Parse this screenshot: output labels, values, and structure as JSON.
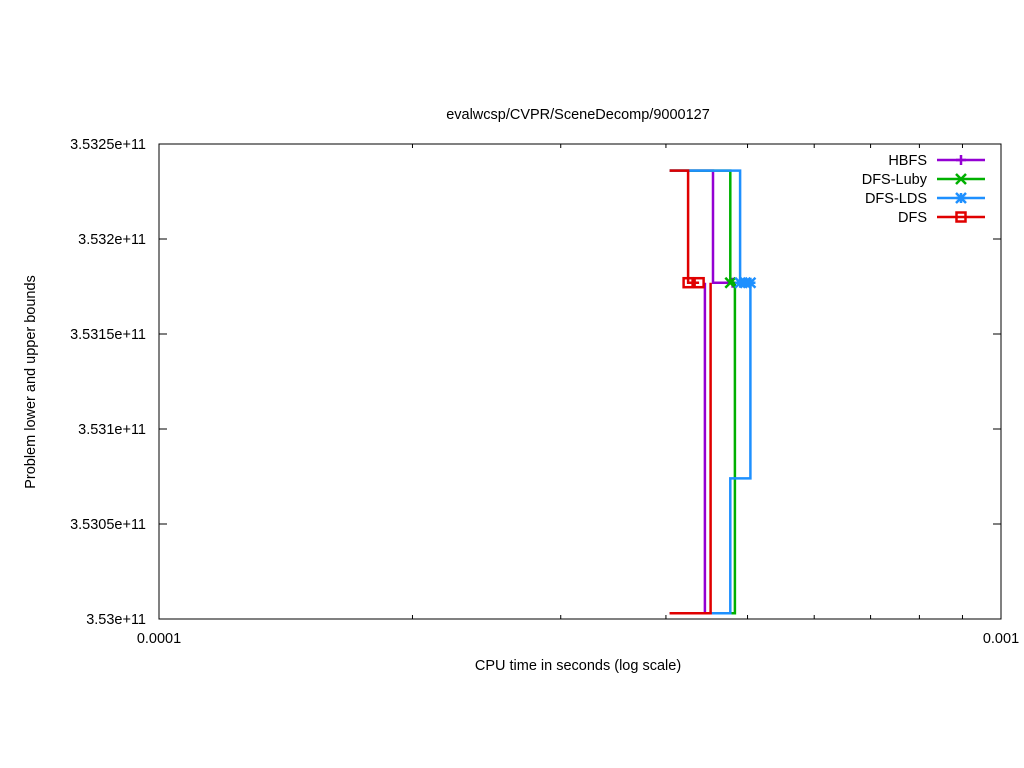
{
  "chart_data": {
    "type": "line",
    "title": "evalwcsp/CVPR/SceneDecomp/9000127",
    "xlabel": "CPU time in seconds (log scale)",
    "ylabel": "Problem lower and upper bounds",
    "x_scale": "log",
    "xlim": [
      0.0001,
      0.001
    ],
    "ylim": [
      353000000000,
      353250000000
    ],
    "x_ticks": [
      {
        "value": 0.0001,
        "label": "0.0001"
      },
      {
        "value": 0.001,
        "label": "0.001"
      }
    ],
    "y_ticks": [
      {
        "value": 353000000000,
        "label": "3.53e+11"
      },
      {
        "value": 353050000000,
        "label": "3.5305e+11"
      },
      {
        "value": 353100000000,
        "label": "3.531e+11"
      },
      {
        "value": 353150000000,
        "label": "3.5315e+11"
      },
      {
        "value": 353200000000,
        "label": "3.532e+11"
      },
      {
        "value": 353250000000,
        "label": "3.5325e+11"
      }
    ],
    "grid": false,
    "legend_position": "top-right",
    "series": [
      {
        "name": "HBFS",
        "color": "#9400d3",
        "marker": "plus",
        "upper": [
          [
            0.000404,
            353236000000
          ],
          [
            0.000455,
            353236000000
          ],
          [
            0.000455,
            353177000000
          ],
          [
            0.00048,
            353177000000
          ]
        ],
        "lower": [
          [
            0.000445,
            353177000000
          ],
          [
            0.000445,
            353003000000
          ],
          [
            0.000404,
            353003000000
          ]
        ],
        "marker_points": [
          [
            0.00048,
            353177000000
          ]
        ]
      },
      {
        "name": "DFS-Luby",
        "color": "#00b000",
        "marker": "x",
        "upper": [
          [
            0.000404,
            353236000000
          ],
          [
            0.000477,
            353236000000
          ],
          [
            0.000477,
            353177000000
          ],
          [
            0.000483,
            353177000000
          ]
        ],
        "lower": [
          [
            0.000483,
            353177000000
          ],
          [
            0.000483,
            353003000000
          ],
          [
            0.000404,
            353003000000
          ]
        ],
        "marker_points": [
          [
            0.000477,
            353177000000
          ]
        ]
      },
      {
        "name": "DFS-LDS",
        "color": "#1e90ff",
        "marker": "asterisk",
        "upper": [
          [
            0.000404,
            353236000000
          ],
          [
            0.00049,
            353236000000
          ],
          [
            0.00049,
            353177000000
          ],
          [
            0.000504,
            353177000000
          ]
        ],
        "lower": [
          [
            0.000504,
            353177000000
          ],
          [
            0.000504,
            353074000000
          ],
          [
            0.000477,
            353074000000
          ],
          [
            0.000477,
            353003000000
          ],
          [
            0.000404,
            353003000000
          ]
        ],
        "marker_points": [
          [
            0.00049,
            353177000000
          ],
          [
            0.000497,
            353177000000
          ],
          [
            0.000504,
            353177000000
          ]
        ]
      },
      {
        "name": "DFS",
        "color": "#e00000",
        "marker": "box",
        "upper": [
          [
            0.000404,
            353236000000
          ],
          [
            0.000425,
            353236000000
          ],
          [
            0.000425,
            353177000000
          ],
          [
            0.000438,
            353177000000
          ]
        ],
        "lower": [
          [
            0.000452,
            353177000000
          ],
          [
            0.000452,
            353003000000
          ],
          [
            0.000404,
            353003000000
          ]
        ],
        "marker_points": [
          [
            0.000425,
            353177000000
          ],
          [
            0.000438,
            353177000000
          ]
        ]
      }
    ]
  }
}
